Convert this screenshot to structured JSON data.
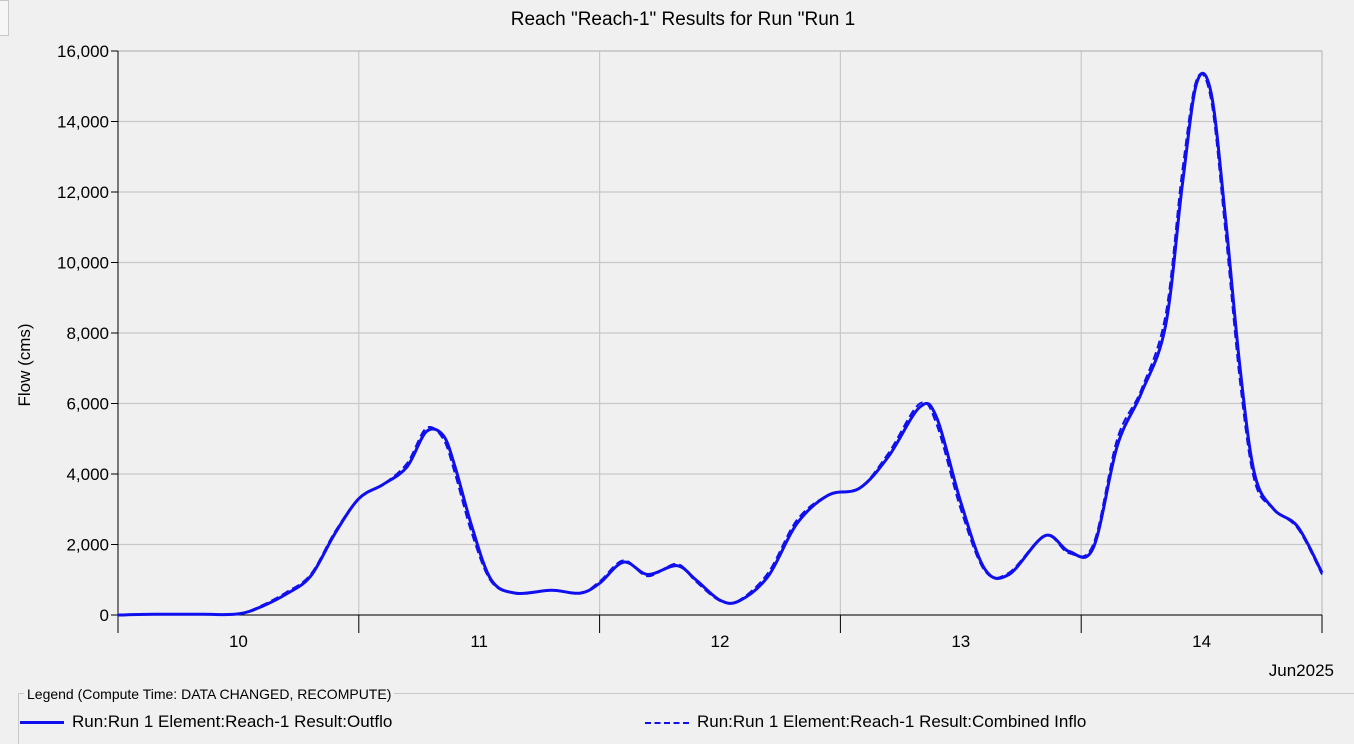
{
  "colors": {
    "series": "#1010ee",
    "grid": "#c8c8c8",
    "plot_bg": "#f0f0f0"
  },
  "chart_data": {
    "type": "line",
    "title": "Reach \"Reach-1\" Results for Run \"Run 1",
    "ylabel": "Flow (cms)",
    "xlabel": "",
    "x_unit_label": "Jun2025",
    "ylim": [
      0,
      16000
    ],
    "xlim": [
      9.5,
      14.5
    ],
    "y_ticks": [
      0,
      2000,
      4000,
      6000,
      8000,
      10000,
      12000,
      14000,
      16000
    ],
    "y_tick_labels": [
      "0",
      "2,000",
      "4,000",
      "6,000",
      "8,000",
      "10,000",
      "12,000",
      "14,000",
      "16,000"
    ],
    "x_day_labels": [
      "10",
      "11",
      "12",
      "13",
      "14"
    ],
    "grid": true,
    "series": [
      {
        "name": "Run:Run 1 Element:Reach-1 Result:Outflow",
        "style": "solid",
        "points": [
          [
            9.5,
            0
          ],
          [
            9.65,
            20
          ],
          [
            9.85,
            20
          ],
          [
            10.0,
            30
          ],
          [
            10.1,
            250
          ],
          [
            10.2,
            600
          ],
          [
            10.3,
            1100
          ],
          [
            10.4,
            2300
          ],
          [
            10.5,
            3300
          ],
          [
            10.6,
            3700
          ],
          [
            10.7,
            4200
          ],
          [
            10.78,
            5200
          ],
          [
            10.85,
            5100
          ],
          [
            10.9,
            4200
          ],
          [
            10.97,
            2500
          ],
          [
            11.05,
            1000
          ],
          [
            11.15,
            620
          ],
          [
            11.3,
            700
          ],
          [
            11.42,
            620
          ],
          [
            11.5,
            900
          ],
          [
            11.6,
            1500
          ],
          [
            11.7,
            1150
          ],
          [
            11.82,
            1400
          ],
          [
            11.9,
            1000
          ],
          [
            12.0,
            420
          ],
          [
            12.08,
            400
          ],
          [
            12.2,
            1100
          ],
          [
            12.32,
            2600
          ],
          [
            12.45,
            3400
          ],
          [
            12.58,
            3600
          ],
          [
            12.7,
            4500
          ],
          [
            12.83,
            5900
          ],
          [
            12.9,
            5600
          ],
          [
            13.0,
            3200
          ],
          [
            13.1,
            1300
          ],
          [
            13.2,
            1150
          ],
          [
            13.35,
            2250
          ],
          [
            13.45,
            1800
          ],
          [
            13.55,
            1900
          ],
          [
            13.65,
            4800
          ],
          [
            13.75,
            6300
          ],
          [
            13.85,
            8200
          ],
          [
            13.92,
            12200
          ],
          [
            13.98,
            15100
          ],
          [
            14.04,
            14800
          ],
          [
            14.1,
            11200
          ],
          [
            14.16,
            7000
          ],
          [
            14.22,
            4000
          ],
          [
            14.3,
            3000
          ],
          [
            14.4,
            2500
          ],
          [
            14.5,
            1200
          ]
        ]
      },
      {
        "name": "Run:Run 1 Element:Reach-1 Result:Combined Inflow",
        "style": "dashed",
        "points": [
          [
            9.65,
            20
          ],
          [
            9.85,
            20
          ],
          [
            10.0,
            30
          ],
          [
            10.1,
            280
          ],
          [
            10.2,
            650
          ],
          [
            10.3,
            1150
          ],
          [
            10.4,
            2350
          ],
          [
            10.5,
            3300
          ],
          [
            10.6,
            3700
          ],
          [
            10.7,
            4300
          ],
          [
            10.78,
            5300
          ],
          [
            10.85,
            5000
          ],
          [
            10.9,
            4000
          ],
          [
            10.97,
            2300
          ],
          [
            11.05,
            950
          ],
          [
            11.15,
            620
          ],
          [
            11.3,
            700
          ],
          [
            11.42,
            610
          ],
          [
            11.5,
            950
          ],
          [
            11.6,
            1550
          ],
          [
            11.7,
            1100
          ],
          [
            11.82,
            1450
          ],
          [
            11.9,
            950
          ],
          [
            12.0,
            400
          ],
          [
            12.08,
            420
          ],
          [
            12.2,
            1200
          ],
          [
            12.32,
            2700
          ],
          [
            12.45,
            3400
          ],
          [
            12.58,
            3600
          ],
          [
            12.7,
            4600
          ],
          [
            12.83,
            6000
          ],
          [
            12.9,
            5400
          ],
          [
            13.0,
            3000
          ],
          [
            13.1,
            1250
          ],
          [
            13.2,
            1200
          ],
          [
            13.35,
            2250
          ],
          [
            13.45,
            1750
          ],
          [
            13.55,
            2000
          ],
          [
            13.65,
            5000
          ],
          [
            13.75,
            6400
          ],
          [
            13.85,
            8500
          ],
          [
            13.92,
            12600
          ],
          [
            13.98,
            15200
          ],
          [
            14.04,
            14600
          ],
          [
            14.1,
            10800
          ],
          [
            14.16,
            6600
          ],
          [
            14.22,
            3800
          ],
          [
            14.3,
            3000
          ],
          [
            14.4,
            2450
          ],
          [
            14.5,
            1150
          ]
        ]
      }
    ]
  },
  "legend": {
    "title": "Legend (Compute Time: DATA CHANGED, RECOMPUTE)",
    "items": [
      {
        "label": "Run:Run 1 Element:Reach-1 Result:Outflo"
      },
      {
        "label": "Run:Run 1 Element:Reach-1 Result:Combined Inflo"
      }
    ]
  }
}
